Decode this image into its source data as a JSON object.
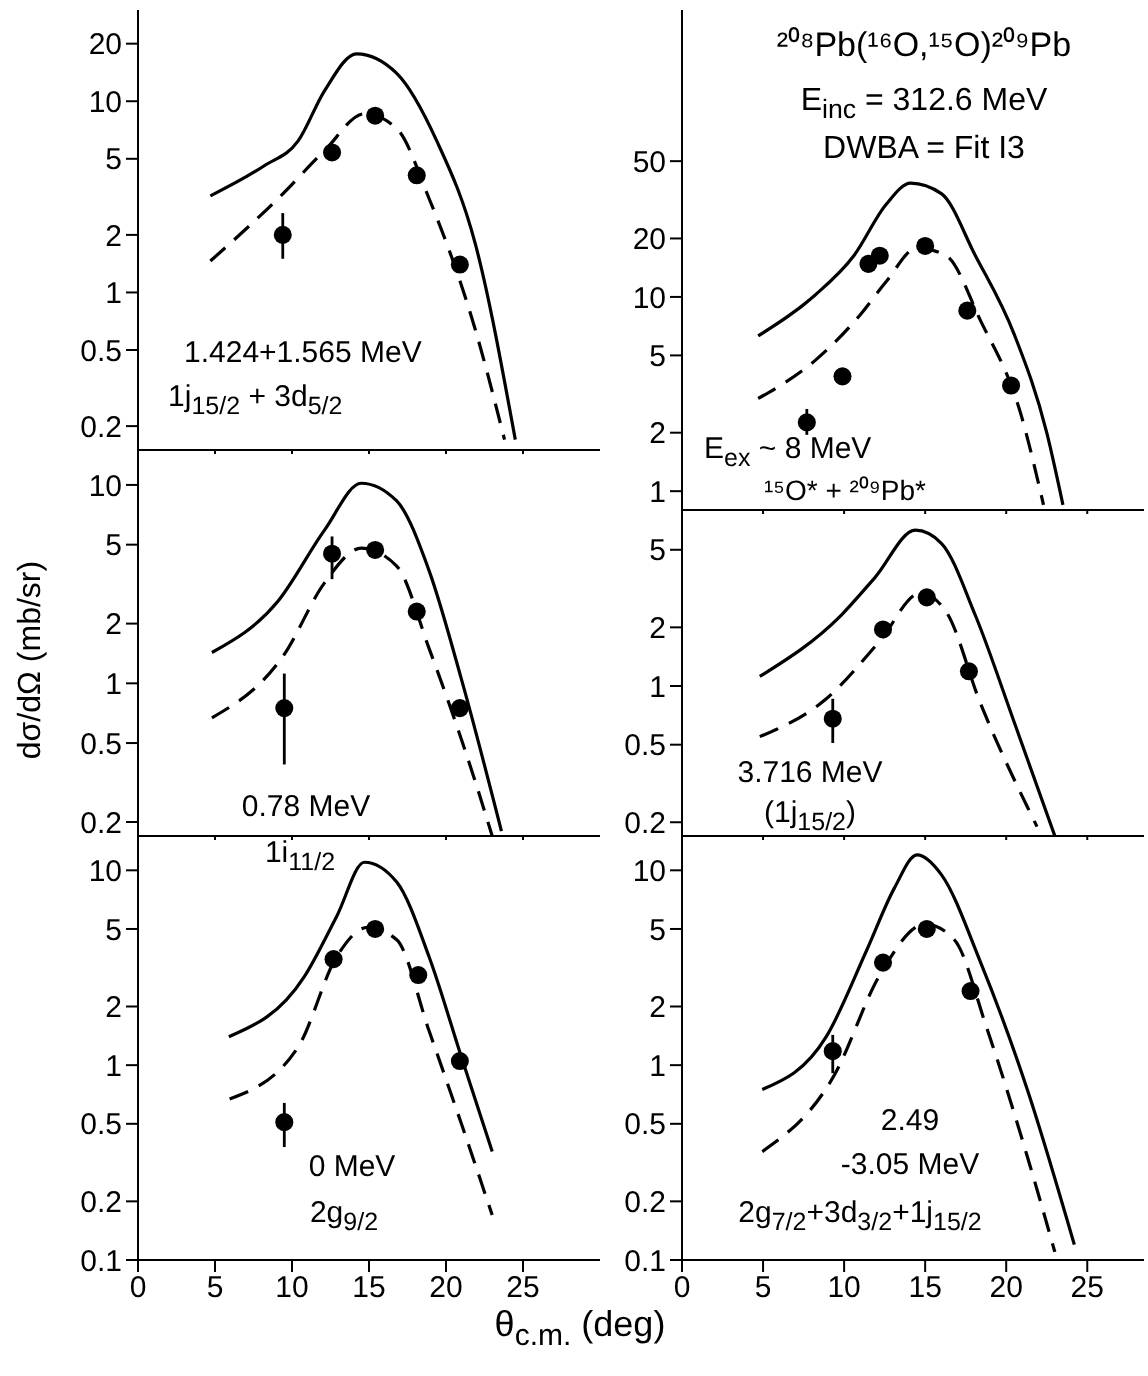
{
  "chart_data": [
    {
      "type": "line",
      "xlim": [
        0,
        30
      ],
      "xticks": [
        0,
        5,
        10,
        15,
        20,
        25
      ],
      "ylim": [
        0.15,
        30
      ],
      "yticks": [
        0.2,
        0.5,
        1,
        2,
        5,
        10,
        20
      ],
      "log": true,
      "tick_labels": "y",
      "annotations": [
        "1.424+1.565 MeV",
        "1j$_{15/2}$ + 3d$_{5/2}$"
      ],
      "series": [
        {
          "line_style": "solid",
          "marker": "none",
          "color": "#000000",
          "x": [
            4.7,
            8.2,
            10.4,
            12.1,
            14.2,
            16.8,
            19.4,
            21.9,
            24.5
          ],
          "values": [
            3.2,
            4.6,
            6.2,
            11.3,
            17.7,
            14,
            6.2,
            1.8,
            0.17
          ]
        },
        {
          "line_style": "dashed",
          "marker": "none",
          "color": "#000000",
          "x": [
            4.7,
            9.1,
            12.1,
            14.7,
            16.8,
            18.9,
            21.9,
            23.8
          ],
          "values": [
            1.46,
            3.1,
            5.5,
            8.6,
            7.2,
            3.1,
            0.64,
            0.17
          ]
        },
        {
          "type": "scatter",
          "marker": "circle",
          "color": "#000000",
          "x": [
            9.4,
            12.6,
            15.4,
            18.1,
            20.9
          ],
          "values": [
            2.0,
            5.4,
            8.4,
            4.1,
            1.4
          ],
          "errors": [
            [
              1.5,
              2.6
            ],
            null,
            null,
            null,
            null
          ]
        }
      ]
    },
    {
      "type": "line",
      "xlim": [
        0,
        28.5
      ],
      "xticks": [
        0,
        5,
        10,
        15,
        20,
        25
      ],
      "ylim": [
        0.8,
        300
      ],
      "yticks": [
        1,
        2,
        5,
        10,
        20,
        50
      ],
      "log": true,
      "tick_labels": "y",
      "annotations": [
        "²⁰⁸Pb(¹⁶O,¹⁵O)²⁰⁹Pb",
        "E$_{inc}$ = 312.6 MeV",
        "DWBA = Fit I3",
        "E$_{ex}$ ~ 8 MeV",
        "¹⁵O* + ²⁰⁹Pb*"
      ],
      "series": [
        {
          "line_style": "solid",
          "marker": "none",
          "color": "#000000",
          "x": [
            4.7,
            8.2,
            10.6,
            12.6,
            14.1,
            16.0,
            18.1,
            20.5,
            22.5,
            23.5
          ],
          "values": [
            6.3,
            10.2,
            16.3,
            30,
            38.5,
            34,
            16.3,
            6.4,
            2.0,
            0.85
          ]
        },
        {
          "line_style": "dashed",
          "marker": "none",
          "color": "#000000",
          "x": [
            4.7,
            8.2,
            11.0,
            12.6,
            14.5,
            16.3,
            18.4,
            20.9,
            22.3
          ],
          "values": [
            3.0,
            4.7,
            8.1,
            12,
            17.9,
            16.3,
            7.6,
            2.5,
            0.85
          ]
        },
        {
          "type": "scatter",
          "marker": "circle",
          "color": "#000000",
          "x": [
            7.7,
            9.9,
            11.5,
            12.2,
            15.0,
            17.6,
            20.3
          ],
          "values": [
            2.26,
            3.9,
            14.8,
            16.3,
            18.3,
            8.5,
            3.5
          ],
          "errors": [
            [
              1.95,
              2.65
            ],
            null,
            null,
            null,
            null,
            null,
            null
          ]
        }
      ]
    },
    {
      "type": "line",
      "xlim": [
        0,
        30
      ],
      "xticks": [
        0,
        5,
        10,
        15,
        20,
        25
      ],
      "ylim": [
        0.17,
        15
      ],
      "yticks": [
        0.2,
        0.5,
        1,
        2,
        5,
        10
      ],
      "log": true,
      "tick_labels": "y",
      "ylabel": "dσ/dΩ (mb/sr)",
      "annotations": [
        "0.78 MeV",
        "1i$_{11/2}$"
      ],
      "series": [
        {
          "line_style": "solid",
          "marker": "none",
          "color": "#000000",
          "x": [
            4.8,
            9.1,
            12.1,
            14.5,
            16.8,
            18.9,
            21.0,
            23.6
          ],
          "values": [
            1.43,
            2.6,
            5.9,
            10.2,
            8.3,
            3.7,
            1.05,
            0.18
          ]
        },
        {
          "line_style": "dashed",
          "marker": "none",
          "color": "#000000",
          "x": [
            4.8,
            9.5,
            12.1,
            14.5,
            16.8,
            18.9,
            21.9,
            23.0
          ],
          "values": [
            0.67,
            1.4,
            3.2,
            4.8,
            3.9,
            1.5,
            0.32,
            0.17
          ]
        },
        {
          "type": "scatter",
          "marker": "circle",
          "color": "#000000",
          "x": [
            9.5,
            12.6,
            15.4,
            18.1,
            20.9
          ],
          "values": [
            0.75,
            4.5,
            4.7,
            2.3,
            0.75
          ],
          "errors": [
            [
              0.39,
              1.12
            ],
            [
              3.35,
              5.5
            ],
            null,
            null,
            null
          ]
        }
      ]
    },
    {
      "type": "line",
      "xlim": [
        0,
        28.5
      ],
      "xticks": [
        0,
        5,
        10,
        15,
        20,
        25
      ],
      "ylim": [
        0.17,
        8
      ],
      "yticks": [
        0.2,
        0.5,
        1,
        2,
        5
      ],
      "log": true,
      "tick_labels": "y",
      "annotations": [
        "3.716 MeV",
        "(1j$_{15/2}$)"
      ],
      "series": [
        {
          "line_style": "solid",
          "marker": "none",
          "color": "#000000",
          "x": [
            4.8,
            9.8,
            11.9,
            14.4,
            16.0,
            18.1,
            20.5,
            23.0
          ],
          "values": [
            1.12,
            2.3,
            3.6,
            6.3,
            5.4,
            2.3,
            0.65,
            0.17
          ]
        },
        {
          "line_style": "dashed",
          "marker": "none",
          "color": "#000000",
          "x": [
            4.8,
            8.9,
            12.2,
            14.7,
            16.3,
            18.4,
            21.3,
            21.9
          ],
          "values": [
            0.55,
            0.86,
            1.7,
            3.0,
            2.4,
            0.82,
            0.24,
            0.19
          ]
        },
        {
          "type": "scatter",
          "marker": "circle",
          "color": "#000000",
          "x": [
            9.3,
            12.4,
            15.1,
            17.7
          ],
          "values": [
            0.68,
            1.95,
            2.85,
            1.19
          ],
          "errors": [
            [
              0.51,
              0.86
            ],
            null,
            null,
            null
          ]
        }
      ]
    },
    {
      "type": "line",
      "xlim": [
        0,
        30
      ],
      "xticks": [
        0,
        5,
        10,
        15,
        20,
        25
      ],
      "ylim": [
        0.1,
        15
      ],
      "yticks": [
        0.1,
        0.2,
        0.5,
        1,
        2,
        5,
        10
      ],
      "log": true,
      "xlabel": "θ$_{c.m.}$ (deg)",
      "annotations": [
        "0 MeV",
        "2g$_{9/2}$"
      ],
      "series": [
        {
          "line_style": "solid",
          "marker": "none",
          "color": "#000000",
          "x": [
            5.9,
            10.8,
            12.9,
            14.7,
            16.8,
            18.9,
            21.0,
            23.0
          ],
          "values": [
            1.4,
            2.85,
            5.8,
            11,
            8.7,
            3.6,
            1.1,
            0.36
          ]
        },
        {
          "line_style": "dashed",
          "marker": "none",
          "color": "#000000",
          "x": [
            5.95,
            10.4,
            12.9,
            14.9,
            16.8,
            18.9,
            21.0,
            23.0
          ],
          "values": [
            0.67,
            1.24,
            3.6,
            5.1,
            4.4,
            1.5,
            0.5,
            0.17
          ]
        },
        {
          "type": "scatter",
          "marker": "circle",
          "color": "#000000",
          "x": [
            9.5,
            12.7,
            15.4,
            18.2,
            20.9
          ],
          "values": [
            0.51,
            3.5,
            5.0,
            2.9,
            1.05
          ],
          "errors": [
            [
              0.38,
              0.64
            ],
            null,
            null,
            null,
            null
          ]
        }
      ]
    },
    {
      "type": "line",
      "xlim": [
        0,
        28.5
      ],
      "xticks": [
        0,
        5,
        10,
        15,
        20,
        25
      ],
      "ylim": [
        0.1,
        15
      ],
      "yticks": [
        0.1,
        0.2,
        0.5,
        1,
        2,
        5,
        10
      ],
      "log": true,
      "annotations": [
        "2.49",
        "-3.05 MeV",
        "2g$_{7/2}$+3d$_{3/2}$+1j$_{15/2}$"
      ],
      "series": [
        {
          "line_style": "solid",
          "marker": "none",
          "color": "#000000",
          "x": [
            4.95,
            8.9,
            11.4,
            13.1,
            14.5,
            16.0,
            18.4,
            21.3,
            24.2
          ],
          "values": [
            0.75,
            1.4,
            3.9,
            8.1,
            12,
            9.5,
            3.4,
            0.75,
            0.12
          ]
        },
        {
          "line_style": "dashed",
          "marker": "none",
          "color": "#000000",
          "x": [
            4.95,
            9.4,
            12.2,
            15.0,
            16.8,
            18.8,
            21.3,
            23.0
          ],
          "values": [
            0.36,
            0.89,
            2.9,
            5.3,
            4.4,
            1.55,
            0.34,
            0.11
          ]
        },
        {
          "type": "scatter",
          "marker": "circle",
          "color": "#000000",
          "x": [
            9.3,
            12.4,
            15.1,
            17.8
          ],
          "values": [
            1.18,
            3.36,
            5.0,
            2.4
          ],
          "errors": [
            [
              0.91,
              1.43
            ],
            null,
            null,
            null
          ]
        }
      ]
    }
  ]
}
